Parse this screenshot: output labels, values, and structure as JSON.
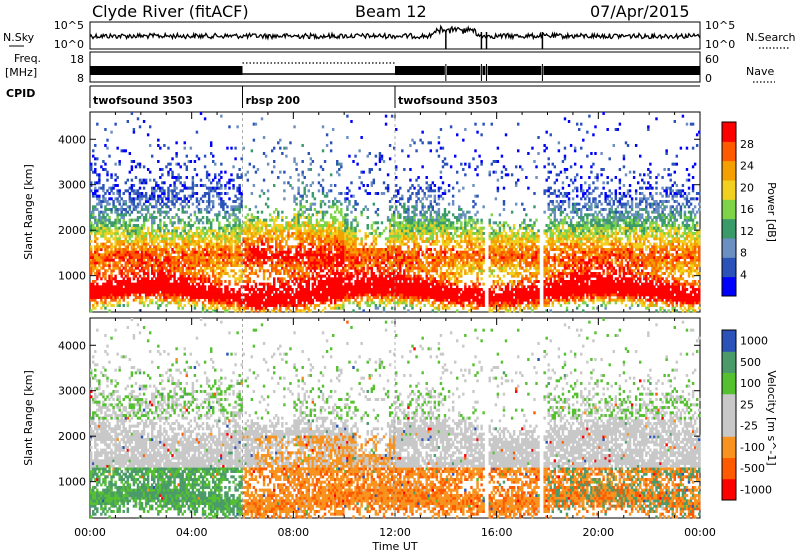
{
  "header": {
    "station": "Clyde River (fitACF)",
    "beam": "Beam 12",
    "date": "07/Apr/2015"
  },
  "side_labels": {
    "nsky": "N.Sky",
    "nsearch": "N.Search",
    "freq_line1": "Freq.",
    "freq_line2": "[MHz]",
    "nave": "Nave",
    "cpid": "CPID"
  },
  "colors": {
    "power": [
      "#0000ff",
      "#2a52b8",
      "#6a8fc0",
      "#3a9a6a",
      "#7ed348",
      "#f2d020",
      "#f4a000",
      "#ff5a00",
      "#ff0000"
    ],
    "velocity": [
      "#ff0000",
      "#ff5a00",
      "#f7931e",
      "#c8c8c8",
      "#c8c8c8",
      "#55c030",
      "#4a9a6a",
      "#2a52b8"
    ]
  },
  "chart_data": [
    {
      "name": "nsky_nsearch",
      "type": "line",
      "y_ticks_left": [
        "10^5",
        "10^0"
      ],
      "y_ticks_right": [
        "10^5",
        "10^0"
      ],
      "xlim": [
        0,
        24
      ]
    },
    {
      "name": "freq_nave",
      "type": "line",
      "y_ticks_left": [
        "18",
        "8"
      ],
      "y_ticks_right": [
        "60",
        "0"
      ],
      "xlim": [
        0,
        24
      ],
      "nave_dotted_segment": [
        6,
        12
      ]
    },
    {
      "name": "cpid",
      "type": "table",
      "segments": [
        {
          "start": 0,
          "end": 6,
          "label": "twofsound 3503"
        },
        {
          "start": 6,
          "end": 12,
          "label": "rbsp 200"
        },
        {
          "start": 12,
          "end": 24,
          "label": "twofsound 3503"
        }
      ]
    },
    {
      "name": "power",
      "type": "heatmap",
      "ylabel": "Slant Range [km]",
      "yticks": [
        1000,
        2000,
        3000,
        4000
      ],
      "ylim": [
        200,
        4600
      ],
      "xlim": [
        0,
        24
      ],
      "colorbar_label": "Power [dB]",
      "colorbar_ticks": [
        "4",
        "8",
        "12",
        "16",
        "20",
        "24",
        "28"
      ],
      "colorbar_range": [
        0,
        32
      ]
    },
    {
      "name": "velocity",
      "type": "heatmap",
      "xlabel": "Time UT",
      "ylabel": "Slant Range [km]",
      "yticks": [
        1000,
        2000,
        3000,
        4000
      ],
      "ylim": [
        200,
        4600
      ],
      "xlim": [
        0,
        24
      ],
      "xticks": [
        "00:00",
        "04:00",
        "08:00",
        "12:00",
        "16:00",
        "20:00",
        "00:00"
      ],
      "colorbar_label": "Velocity [m s^-1]",
      "colorbar_ticks": [
        "-1000",
        "-500",
        "-100",
        "-25",
        "25",
        "100",
        "500",
        "1000"
      ]
    }
  ]
}
